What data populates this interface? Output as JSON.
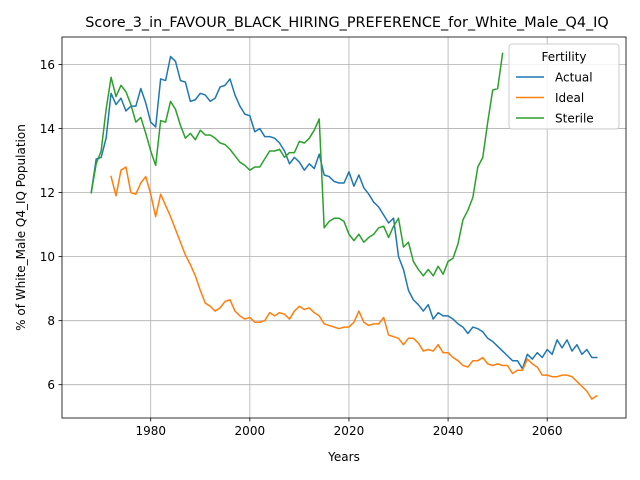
{
  "chart_data": {
    "type": "line",
    "title": "Score_3_in_FAVOUR_BLACK_HIRING_PREFERENCE_for_White_Male_Q4_IQ",
    "xlabel": "Years",
    "ylabel": "% of White_Male Q4_IQ Population",
    "xlim": [
      1962.1,
      2075.9
    ],
    "ylim": [
      4.96,
      16.86
    ],
    "xticks": [
      1980,
      2000,
      2020,
      2040,
      2060
    ],
    "yticks": [
      6,
      8,
      10,
      12,
      14,
      16
    ],
    "grid": true,
    "legend": {
      "title": "Fertility",
      "placement": "top-right"
    },
    "series": [
      {
        "name": "Actual",
        "color": "#1f77b4",
        "x": [
          1968,
          1969,
          1970,
          1971,
          1972,
          1973,
          1974,
          1975,
          1976,
          1977,
          1978,
          1979,
          1980,
          1981,
          1982,
          1983,
          1984,
          1985,
          1986,
          1987,
          1988,
          1989,
          1990,
          1991,
          1992,
          1993,
          1994,
          1995,
          1996,
          1997,
          1998,
          1999,
          2000,
          2001,
          2002,
          2003,
          2004,
          2005,
          2006,
          2007,
          2008,
          2009,
          2010,
          2011,
          2012,
          2013,
          2014,
          2015,
          2016,
          2017,
          2018,
          2019,
          2020,
          2021,
          2022,
          2023,
          2024,
          2025,
          2026,
          2027,
          2028,
          2029,
          2030,
          2031,
          2032,
          2033,
          2034,
          2035,
          2036,
          2037,
          2038,
          2039,
          2040,
          2041,
          2042,
          2043,
          2044,
          2045,
          2046,
          2047,
          2048,
          2049,
          2050,
          2051,
          2052,
          2053,
          2054,
          2055,
          2056,
          2057,
          2058,
          2059,
          2060,
          2061,
          2062,
          2063,
          2064,
          2065,
          2066,
          2067,
          2068,
          2069,
          2070
        ],
        "values": [
          12.0,
          13.05,
          13.1,
          13.7,
          15.1,
          14.75,
          14.95,
          14.55,
          14.7,
          14.7,
          15.25,
          14.8,
          14.2,
          14.05,
          15.55,
          15.5,
          16.25,
          16.1,
          15.5,
          15.45,
          14.85,
          14.9,
          15.1,
          15.05,
          14.85,
          14.95,
          15.3,
          15.35,
          15.55,
          15.05,
          14.7,
          14.45,
          14.4,
          13.9,
          14.0,
          13.75,
          13.75,
          13.7,
          13.55,
          13.3,
          12.9,
          13.1,
          12.95,
          12.7,
          12.9,
          12.75,
          13.2,
          12.55,
          12.5,
          12.35,
          12.3,
          12.3,
          12.65,
          12.2,
          12.55,
          12.15,
          11.95,
          11.7,
          11.55,
          11.3,
          11.05,
          11.2,
          10.0,
          9.6,
          8.95,
          8.65,
          8.5,
          8.3,
          8.5,
          8.05,
          8.25,
          8.15,
          8.15,
          8.05,
          7.9,
          7.8,
          7.6,
          7.8,
          7.75,
          7.65,
          7.45,
          7.35,
          7.2,
          7.05,
          6.9,
          6.75,
          6.75,
          6.5,
          6.95,
          6.8,
          7.0,
          6.85,
          7.1,
          6.95,
          7.4,
          7.15,
          7.4,
          7.05,
          7.25,
          6.95,
          7.1,
          6.85,
          6.85
        ]
      },
      {
        "name": "Ideal",
        "color": "#ff7f0e",
        "x": [
          1972,
          1973,
          1974,
          1975,
          1976,
          1977,
          1978,
          1979,
          1980,
          1981,
          1982,
          1983,
          1984,
          1985,
          1986,
          1987,
          1988,
          1989,
          1990,
          1991,
          1992,
          1993,
          1994,
          1995,
          1996,
          1997,
          1998,
          1999,
          2000,
          2001,
          2002,
          2003,
          2004,
          2005,
          2006,
          2007,
          2008,
          2009,
          2010,
          2011,
          2012,
          2013,
          2014,
          2015,
          2016,
          2017,
          2018,
          2019,
          2020,
          2021,
          2022,
          2023,
          2024,
          2025,
          2026,
          2027,
          2028,
          2029,
          2030,
          2031,
          2032,
          2033,
          2034,
          2035,
          2036,
          2037,
          2038,
          2039,
          2040,
          2041,
          2042,
          2043,
          2044,
          2045,
          2046,
          2047,
          2048,
          2049,
          2050,
          2051,
          2052,
          2053,
          2054,
          2055,
          2056,
          2057,
          2058,
          2059,
          2060,
          2061,
          2062,
          2063,
          2064,
          2065,
          2066,
          2067,
          2068,
          2069,
          2070
        ],
        "values": [
          12.5,
          11.9,
          12.7,
          12.8,
          12.0,
          11.95,
          12.3,
          12.5,
          11.95,
          11.25,
          11.95,
          11.6,
          11.25,
          10.85,
          10.45,
          10.05,
          9.75,
          9.4,
          8.95,
          8.55,
          8.45,
          8.3,
          8.4,
          8.6,
          8.65,
          8.3,
          8.15,
          8.05,
          8.1,
          7.95,
          7.95,
          8.0,
          8.25,
          8.15,
          8.25,
          8.2,
          8.05,
          8.3,
          8.45,
          8.35,
          8.4,
          8.25,
          8.15,
          7.9,
          7.85,
          7.8,
          7.75,
          7.8,
          7.8,
          7.95,
          8.3,
          7.95,
          7.85,
          7.9,
          7.9,
          8.1,
          7.55,
          7.5,
          7.45,
          7.25,
          7.45,
          7.45,
          7.3,
          7.05,
          7.1,
          7.05,
          7.25,
          7.0,
          7.0,
          6.85,
          6.75,
          6.6,
          6.55,
          6.75,
          6.75,
          6.85,
          6.65,
          6.6,
          6.65,
          6.6,
          6.6,
          6.35,
          6.45,
          6.45,
          6.8,
          6.65,
          6.55,
          6.3,
          6.3,
          6.25,
          6.25,
          6.3,
          6.3,
          6.25,
          6.1,
          5.95,
          5.8,
          5.55,
          5.65
        ]
      },
      {
        "name": "Sterile",
        "color": "#2ca02c",
        "x": [
          1968,
          1969,
          1970,
          1971,
          1972,
          1973,
          1974,
          1975,
          1976,
          1977,
          1978,
          1979,
          1980,
          1981,
          1982,
          1983,
          1984,
          1985,
          1986,
          1987,
          1988,
          1989,
          1990,
          1991,
          1992,
          1993,
          1994,
          1995,
          1996,
          1997,
          1998,
          1999,
          2000,
          2001,
          2002,
          2003,
          2004,
          2005,
          2006,
          2007,
          2008,
          2009,
          2010,
          2011,
          2012,
          2013,
          2014,
          2015,
          2016,
          2017,
          2018,
          2019,
          2020,
          2021,
          2022,
          2023,
          2024,
          2025,
          2026,
          2027,
          2028,
          2029,
          2030,
          2031,
          2032,
          2033,
          2034,
          2035,
          2036,
          2037,
          2038,
          2039,
          2040,
          2041,
          2042,
          2043,
          2044,
          2045,
          2046,
          2047,
          2048,
          2049,
          2050,
          2051
        ],
        "values": [
          12.0,
          12.9,
          13.3,
          14.6,
          15.6,
          15.0,
          15.35,
          15.15,
          14.75,
          14.2,
          14.35,
          13.85,
          13.3,
          12.85,
          14.25,
          14.2,
          14.85,
          14.6,
          14.1,
          13.7,
          13.85,
          13.65,
          13.95,
          13.8,
          13.8,
          13.7,
          13.55,
          13.5,
          13.35,
          13.15,
          12.95,
          12.85,
          12.7,
          12.8,
          12.8,
          13.05,
          13.3,
          13.3,
          13.35,
          13.1,
          13.25,
          13.25,
          13.6,
          13.55,
          13.7,
          13.95,
          14.3,
          10.9,
          11.1,
          11.2,
          11.2,
          11.1,
          10.7,
          10.5,
          10.7,
          10.45,
          10.6,
          10.7,
          10.9,
          10.95,
          10.6,
          10.95,
          11.2,
          10.3,
          10.45,
          9.85,
          9.6,
          9.4,
          9.6,
          9.4,
          9.7,
          9.45,
          9.85,
          9.95,
          10.4,
          11.15,
          11.45,
          11.85,
          12.8,
          13.1,
          14.2,
          15.2,
          15.25,
          16.35
        ]
      }
    ]
  }
}
